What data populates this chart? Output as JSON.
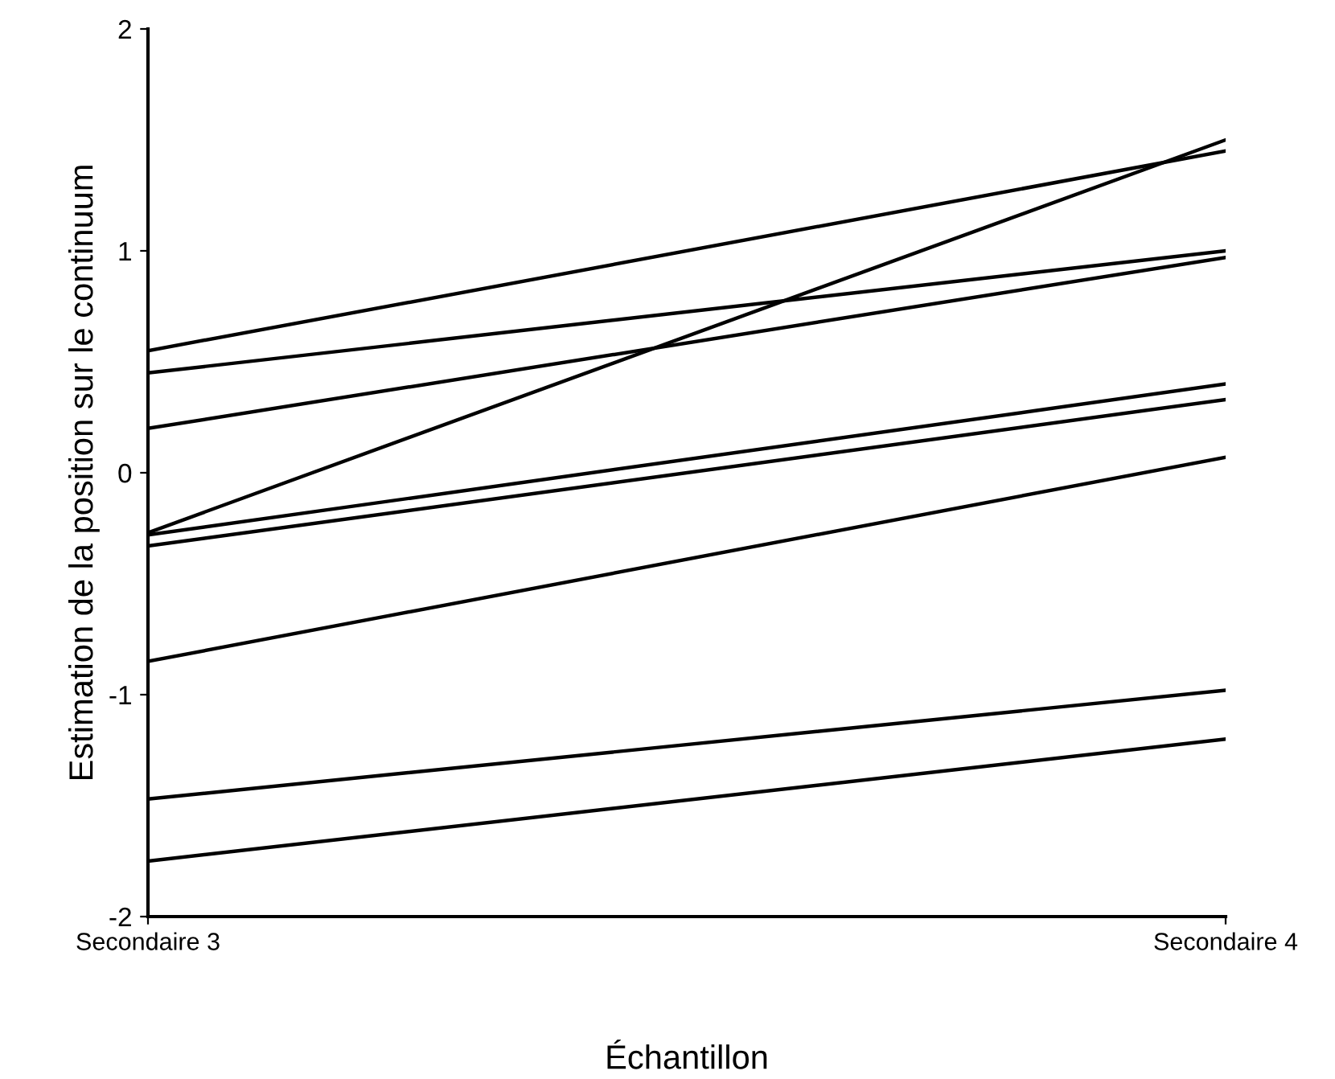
{
  "chart_data": {
    "type": "line",
    "xlabel": "Échantillon",
    "ylabel": "Estimation de la position sur le continuum",
    "categories": [
      "Secondaire 3",
      "Secondaire 4"
    ],
    "ylim": [
      -2,
      2
    ],
    "yticks": [
      -2,
      -1,
      0,
      1,
      2
    ],
    "grid": false,
    "marker": "none",
    "line_style": "solid",
    "series": [
      {
        "color": "#000000",
        "values": [
          0.55,
          1.45
        ]
      },
      {
        "color": "#000000",
        "values": [
          0.45,
          1.0
        ]
      },
      {
        "color": "#000000",
        "values": [
          0.2,
          0.97
        ]
      },
      {
        "color": "#000000",
        "values": [
          -0.27,
          1.5
        ]
      },
      {
        "color": "#000000",
        "values": [
          -0.28,
          0.4
        ]
      },
      {
        "color": "#000000",
        "values": [
          -0.33,
          0.33
        ]
      },
      {
        "color": "#000000",
        "values": [
          -0.85,
          0.07
        ]
      },
      {
        "color": "#000000",
        "values": [
          -1.47,
          -0.98
        ]
      },
      {
        "color": "#000000",
        "values": [
          -1.75,
          -1.2
        ]
      }
    ]
  }
}
